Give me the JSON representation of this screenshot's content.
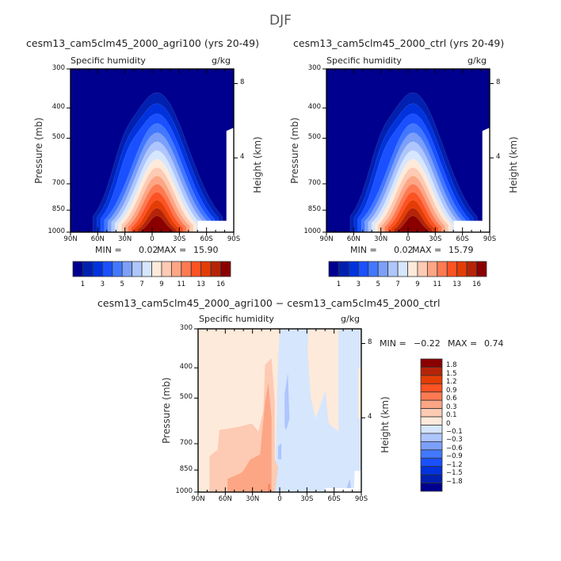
{
  "suptitle": "DJF",
  "chart_data": [
    {
      "type": "heatmap",
      "subtype": "filled-contour latitude-pressure cross section",
      "title": "cesm13_cam5clm45_2000_agri100 (yrs 20-49)",
      "left_label": "Specific humidity",
      "right_label": "g/kg",
      "xlabel": "",
      "ylabel": "Pressure (mb)",
      "ylabel_right": "Height (km)",
      "x_ticks": [
        "90N",
        "60N",
        "30N",
        "0",
        "30S",
        "60S",
        "90S"
      ],
      "y_ticks": [
        "300",
        "400",
        "500",
        "700",
        "850",
        "1000"
      ],
      "y_ticks_right": [
        "8",
        "4"
      ],
      "ylim": [
        1000,
        300
      ],
      "xlim": [
        "90N",
        "90S"
      ],
      "min_label": "MIN =",
      "min_value": "0.02",
      "max_label": "MAX =",
      "max_value": "15.90",
      "colorbar_labels": [
        "1",
        "3",
        "5",
        "7",
        "9",
        "11",
        "13",
        "16"
      ],
      "colorbar_orientation": "horizontal",
      "peak": {
        "lat": "~10S",
        "pressure": 1000,
        "value": 15.9
      }
    },
    {
      "type": "heatmap",
      "subtype": "filled-contour latitude-pressure cross section",
      "title": "cesm13_cam5clm45_2000_ctrl (yrs 20-49)",
      "left_label": "Specific humidity",
      "right_label": "g/kg",
      "xlabel": "",
      "ylabel": "Pressure (mb)",
      "ylabel_right": "Height (km)",
      "x_ticks": [
        "90N",
        "60N",
        "30N",
        "0",
        "30S",
        "60S",
        "90S"
      ],
      "y_ticks": [
        "300",
        "400",
        "500",
        "700",
        "850",
        "1000"
      ],
      "y_ticks_right": [
        "8",
        "4"
      ],
      "ylim": [
        1000,
        300
      ],
      "xlim": [
        "90N",
        "90S"
      ],
      "min_label": "MIN =",
      "min_value": "0.02",
      "max_label": "MAX =",
      "max_value": "15.79",
      "colorbar_labels": [
        "1",
        "3",
        "5",
        "7",
        "9",
        "11",
        "13",
        "16"
      ],
      "colorbar_orientation": "horizontal",
      "peak": {
        "lat": "~10S",
        "pressure": 1000,
        "value": 15.79
      }
    },
    {
      "type": "heatmap",
      "subtype": "filled-contour difference field",
      "title": "cesm13_cam5clm45_2000_agri100 − cesm13_cam5clm45_2000_ctrl",
      "left_label": "Specific humidity",
      "right_label": "g/kg",
      "xlabel": "",
      "ylabel": "Pressure (mb)",
      "ylabel_right": "Height (km)",
      "x_ticks": [
        "90N",
        "60N",
        "30N",
        "0",
        "30S",
        "60S",
        "90S"
      ],
      "y_ticks": [
        "300",
        "400",
        "500",
        "700",
        "850",
        "1000"
      ],
      "y_ticks_right": [
        "8",
        "4"
      ],
      "ylim": [
        1000,
        300
      ],
      "xlim": [
        "90N",
        "90S"
      ],
      "min_label": "MIN =",
      "min_value": "−0.22",
      "max_label": "MAX =",
      "max_value": "0.74",
      "colorbar_labels": [
        "1.8",
        "1.5",
        "1.2",
        "0.9",
        "0.6",
        "0.3",
        "0.1",
        "0",
        "−0.1",
        "−0.3",
        "−0.6",
        "−0.9",
        "−1.2",
        "−1.5",
        "−1.8"
      ],
      "colorbar_orientation": "vertical",
      "regions": [
        {
          "area": "90N to ~0, all levels",
          "range": "0 to 0.1"
        },
        {
          "area": "~70N to ~5N, below ~720 mb",
          "range": "0.1 to 0.3"
        },
        {
          "area": "~15N to ~2N, 430-1000 mb",
          "range": "0.1 to 0.3"
        },
        {
          "area": "~55N to ~5N, below ~880 mb; ~10N-3N 550-1000 mb",
          "range": "0.3 to 0.6"
        },
        {
          "area": "0 to 90S (mostly)",
          "range": "-0.1 to 0"
        },
        {
          "area": "~5S-10S, 500-850 mb",
          "range": "-0.3 to -0.1"
        },
        {
          "area": "~40S-60S, 300-750 mb",
          "range": "0 to 0.1"
        }
      ]
    }
  ],
  "palettes": {
    "abs16": [
      "#00008e",
      "#0020b0",
      "#0033dd",
      "#1a50ff",
      "#4278ff",
      "#7c9ffa",
      "#aec6fd",
      "#d6e6fd",
      "#feeada",
      "#fdcab3",
      "#fca685",
      "#fd7a52",
      "#fd5223",
      "#e33d05",
      "#b52408",
      "#8a0000"
    ],
    "diff16": [
      "#8a0000",
      "#b52408",
      "#e33d05",
      "#fd5223",
      "#fd7a52",
      "#fca685",
      "#fdcab3",
      "#feeada",
      "#d6e6fd",
      "#aec6fd",
      "#7c9ffa",
      "#4278ff",
      "#1a50ff",
      "#0033dd",
      "#0020b0",
      "#00008e"
    ]
  }
}
